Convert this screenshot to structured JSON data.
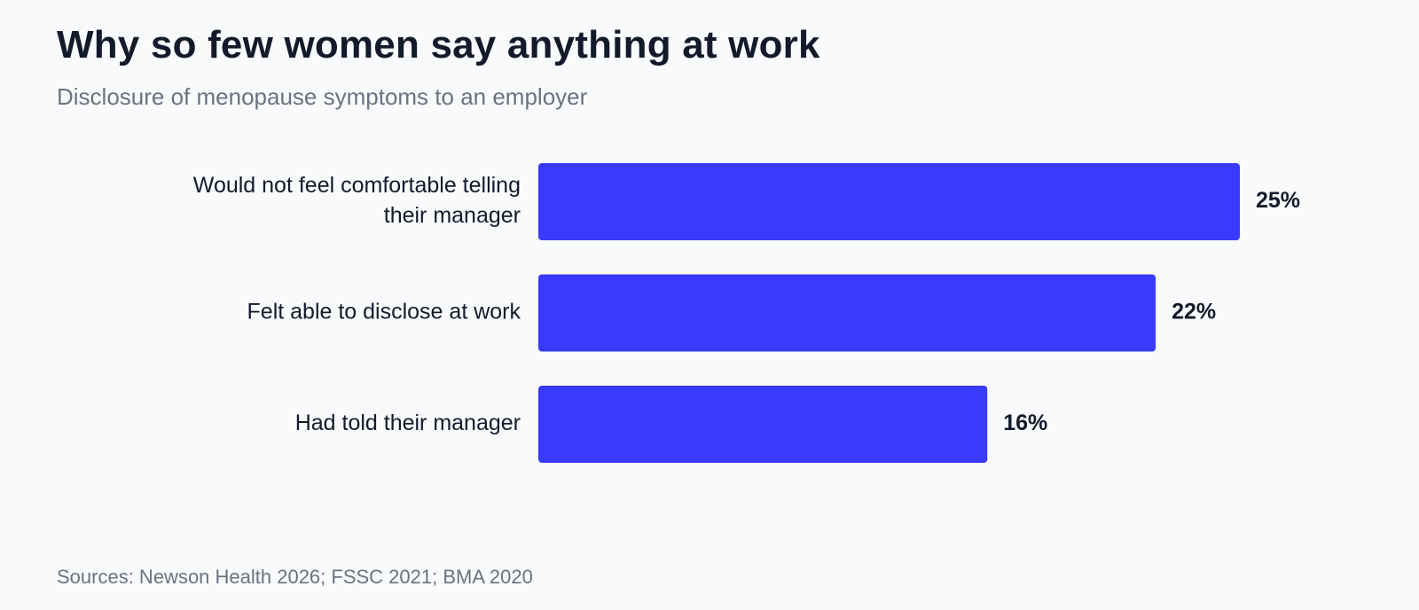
{
  "chart_data": {
    "type": "bar",
    "orientation": "horizontal",
    "title": "Why so few women say anything at work",
    "subtitle": "Disclosure of menopause symptoms to an employer",
    "categories": [
      [
        "Would not feel comfortable telling",
        "their manager"
      ],
      [
        "Felt able to disclose at work"
      ],
      [
        "Had told their manager"
      ]
    ],
    "values": [
      25,
      22,
      16
    ],
    "value_labels": [
      "25%",
      "22%",
      "16%"
    ],
    "unit": "%",
    "bar_color": "#3a3afd",
    "grid": false,
    "legend": "none",
    "source": "Sources: Newson Health 2026; FSSC 2021; BMA 2020"
  }
}
